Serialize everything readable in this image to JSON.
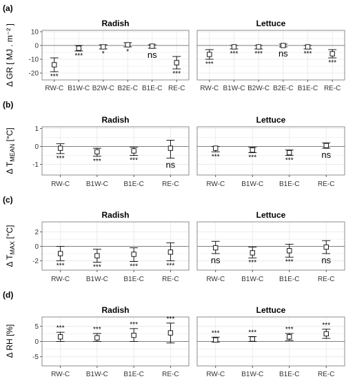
{
  "chart_data": [
    {
      "type": "errorbar",
      "panel_label": "(a)",
      "ylabel": "Δ GR [ MJ . m⁻² ]",
      "ylim": [
        -25,
        11
      ],
      "yticks": [
        10,
        0,
        -10,
        -20
      ],
      "reference_line": 0,
      "categories": [
        "RW-C",
        "B1W-C",
        "B2W-C",
        "B2E-C",
        "B1E-C",
        "RE-C"
      ],
      "facets": [
        {
          "title": "Radish",
          "points": [
            {
              "mean": -14,
              "lower": -19,
              "upper": -9,
              "sig": "***"
            },
            {
              "mean": -2,
              "lower": -4,
              "upper": 0,
              "sig": "***"
            },
            {
              "mean": -1,
              "lower": -2.5,
              "upper": 0.5,
              "sig": "*"
            },
            {
              "mean": 0.5,
              "lower": -1,
              "upper": 2,
              "sig": "*"
            },
            {
              "mean": -0.5,
              "lower": -2,
              "upper": 0.5,
              "sig": "ns"
            },
            {
              "mean": -12.5,
              "lower": -17,
              "upper": -8,
              "sig": "***"
            }
          ]
        },
        {
          "title": "Lettuce",
          "points": [
            {
              "mean": -6.5,
              "lower": -10,
              "upper": -3,
              "sig": "***"
            },
            {
              "mean": -1,
              "lower": -2.5,
              "upper": 0,
              "sig": "***"
            },
            {
              "mean": -1,
              "lower": -2.5,
              "upper": 0,
              "sig": "***"
            },
            {
              "mean": 0,
              "lower": -1,
              "upper": 1,
              "sig": "ns"
            },
            {
              "mean": -1,
              "lower": -2.5,
              "upper": 0,
              "sig": "***"
            },
            {
              "mean": -6,
              "lower": -9,
              "upper": -3,
              "sig": "***"
            }
          ]
        }
      ]
    },
    {
      "type": "errorbar",
      "panel_label": "(b)",
      "ylabel": "Δ T",
      "ylabel_sub": "MEAN",
      "ylabel_unit": " [°C]",
      "ylim": [
        -1.6,
        1.1
      ],
      "yticks": [
        1,
        0,
        -1
      ],
      "reference_line": 0,
      "categories": [
        "RW-C",
        "B1W-C",
        "B1E-C",
        "RE-C"
      ],
      "facets": [
        {
          "title": "Radish",
          "points": [
            {
              "mean": -0.1,
              "lower": -0.4,
              "upper": 0.15,
              "sig": "***"
            },
            {
              "mean": -0.3,
              "lower": -0.55,
              "upper": -0.1,
              "sig": "***"
            },
            {
              "mean": -0.25,
              "lower": -0.5,
              "upper": -0.05,
              "sig": "***"
            },
            {
              "mean": -0.1,
              "lower": -0.65,
              "upper": 0.35,
              "sig": "ns"
            }
          ]
        },
        {
          "title": "Lettuce",
          "points": [
            {
              "mean": -0.1,
              "lower": -0.3,
              "upper": 0.0,
              "sig": "***"
            },
            {
              "mean": -0.2,
              "lower": -0.35,
              "upper": -0.05,
              "sig": "***"
            },
            {
              "mean": -0.35,
              "lower": -0.5,
              "upper": -0.2,
              "sig": "***"
            },
            {
              "mean": 0.05,
              "lower": -0.1,
              "upper": 0.2,
              "sig": "ns"
            }
          ]
        }
      ]
    },
    {
      "type": "errorbar",
      "panel_label": "(c)",
      "ylabel": "Δ T",
      "ylabel_sub": "MAX",
      "ylabel_unit": " [°C]",
      "ylim": [
        -3.3,
        3.4
      ],
      "yticks": [
        2,
        0,
        -2
      ],
      "reference_line": 0,
      "categories": [
        "RW-C",
        "B1W-C",
        "B1E-C",
        "RE-C"
      ],
      "facets": [
        {
          "title": "Radish",
          "points": [
            {
              "mean": -1,
              "lower": -2,
              "upper": 0,
              "sig": "***"
            },
            {
              "mean": -1.3,
              "lower": -2.2,
              "upper": -0.4,
              "sig": "***"
            },
            {
              "mean": -1.1,
              "lower": -2.1,
              "upper": -0.2,
              "sig": "***"
            },
            {
              "mean": -0.8,
              "lower": -2,
              "upper": 0.5,
              "sig": "***"
            }
          ]
        },
        {
          "title": "Lettuce",
          "points": [
            {
              "mean": -0.2,
              "lower": -1,
              "upper": 0.7,
              "sig": "ns"
            },
            {
              "mean": -0.9,
              "lower": -1.6,
              "upper": -0.1,
              "sig": "***"
            },
            {
              "mean": -0.6,
              "lower": -1.5,
              "upper": 0.3,
              "sig": "***"
            },
            {
              "mean": -0.1,
              "lower": -1,
              "upper": 0.8,
              "sig": "ns"
            }
          ]
        }
      ]
    },
    {
      "type": "errorbar",
      "panel_label": "(d)",
      "ylabel": "Δ RH [%]",
      "ylim": [
        -8,
        8
      ],
      "yticks": [
        5,
        0,
        -5
      ],
      "reference_line": 0,
      "categories": [
        "RW-C",
        "B1W-C",
        "B1E-C",
        "RE-C"
      ],
      "facets": [
        {
          "title": "Radish",
          "points": [
            {
              "mean": 1.5,
              "lower": 0,
              "upper": 3,
              "sig": "***"
            },
            {
              "mean": 1.2,
              "lower": 0,
              "upper": 2.6,
              "sig": "***"
            },
            {
              "mean": 2,
              "lower": 0,
              "upper": 4.2,
              "sig": "***"
            },
            {
              "mean": 2.8,
              "lower": -0.5,
              "upper": 6,
              "sig": "***"
            }
          ]
        },
        {
          "title": "Lettuce",
          "points": [
            {
              "mean": 0.5,
              "lower": -0.2,
              "upper": 1.4,
              "sig": "***"
            },
            {
              "mean": 0.8,
              "lower": 0,
              "upper": 1.6,
              "sig": "***"
            },
            {
              "mean": 1.5,
              "lower": 0.3,
              "upper": 2.6,
              "sig": "***"
            },
            {
              "mean": 2.5,
              "lower": 1,
              "upper": 4,
              "sig": "***"
            }
          ]
        }
      ]
    }
  ],
  "colors": {
    "panel_border": "#7f7f7f",
    "grid": "#e6e6e6",
    "reference_line": "#808080",
    "marker": "#000000",
    "marker_fill": "#ffffff"
  }
}
